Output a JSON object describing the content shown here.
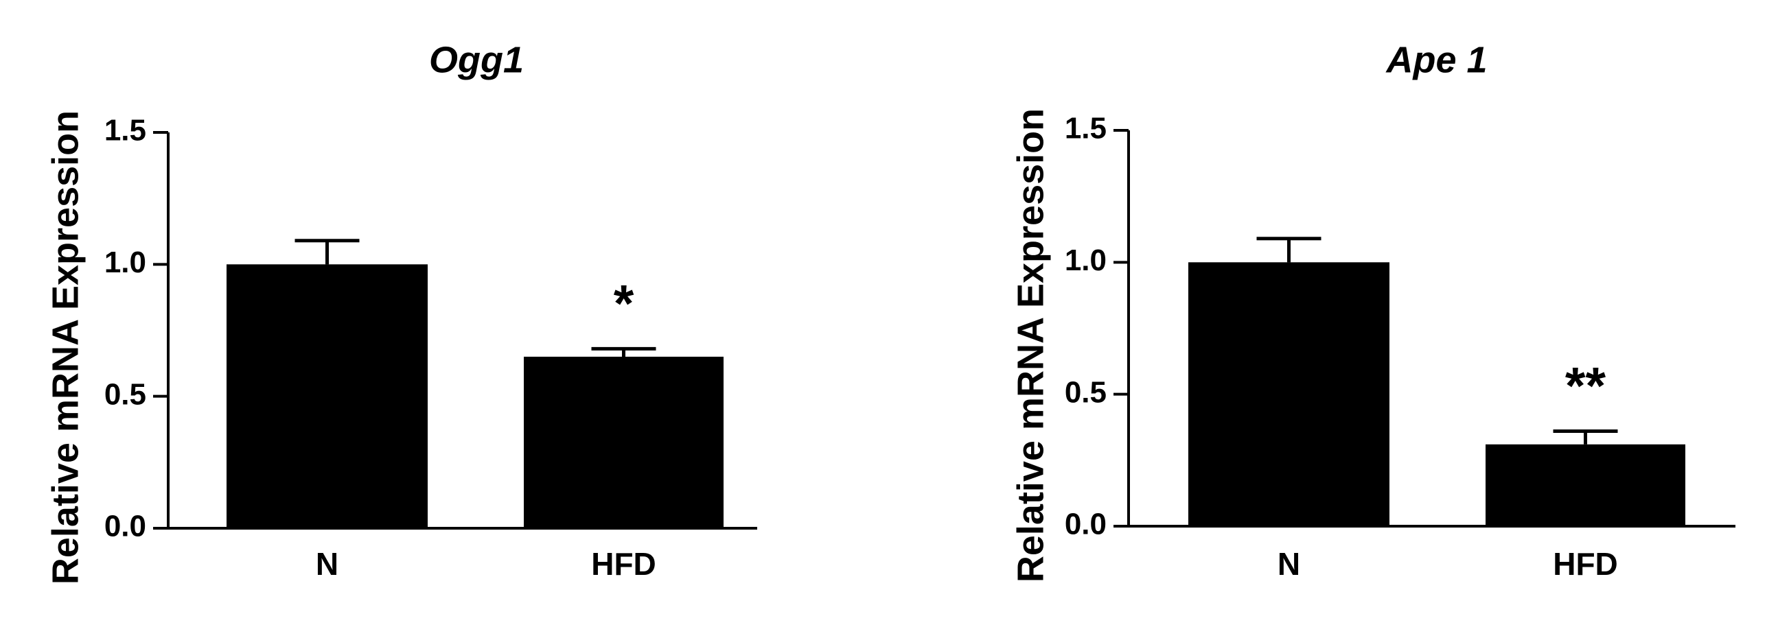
{
  "chart_data": [
    {
      "type": "bar",
      "title": "Ogg1",
      "ylabel": "Relative mRNA Expression",
      "categories": [
        "N",
        "HFD"
      ],
      "values": [
        1.0,
        0.65
      ],
      "errors": [
        0.09,
        0.03
      ],
      "annotations": [
        null,
        "*"
      ],
      "color": "#000000",
      "ylim": [
        0,
        1.5
      ],
      "yticks": [
        {
          "value": 0,
          "label": "0.0"
        },
        0.5,
        {
          "value": 1,
          "label": "1.0"
        },
        1.5
      ]
    },
    {
      "type": "bar",
      "title": "Ape 1",
      "ylabel": "Relative mRNA Expression",
      "categories": [
        "N",
        "HFD"
      ],
      "values": [
        1.0,
        0.31
      ],
      "errors": [
        0.09,
        0.05
      ],
      "annotations": [
        null,
        "**"
      ],
      "color": "#000000",
      "ylim": [
        0,
        1.5
      ],
      "yticks": [
        {
          "value": 0,
          "label": "0.0"
        },
        0.5,
        {
          "value": 1,
          "label": "1.0"
        },
        1.5
      ]
    }
  ]
}
